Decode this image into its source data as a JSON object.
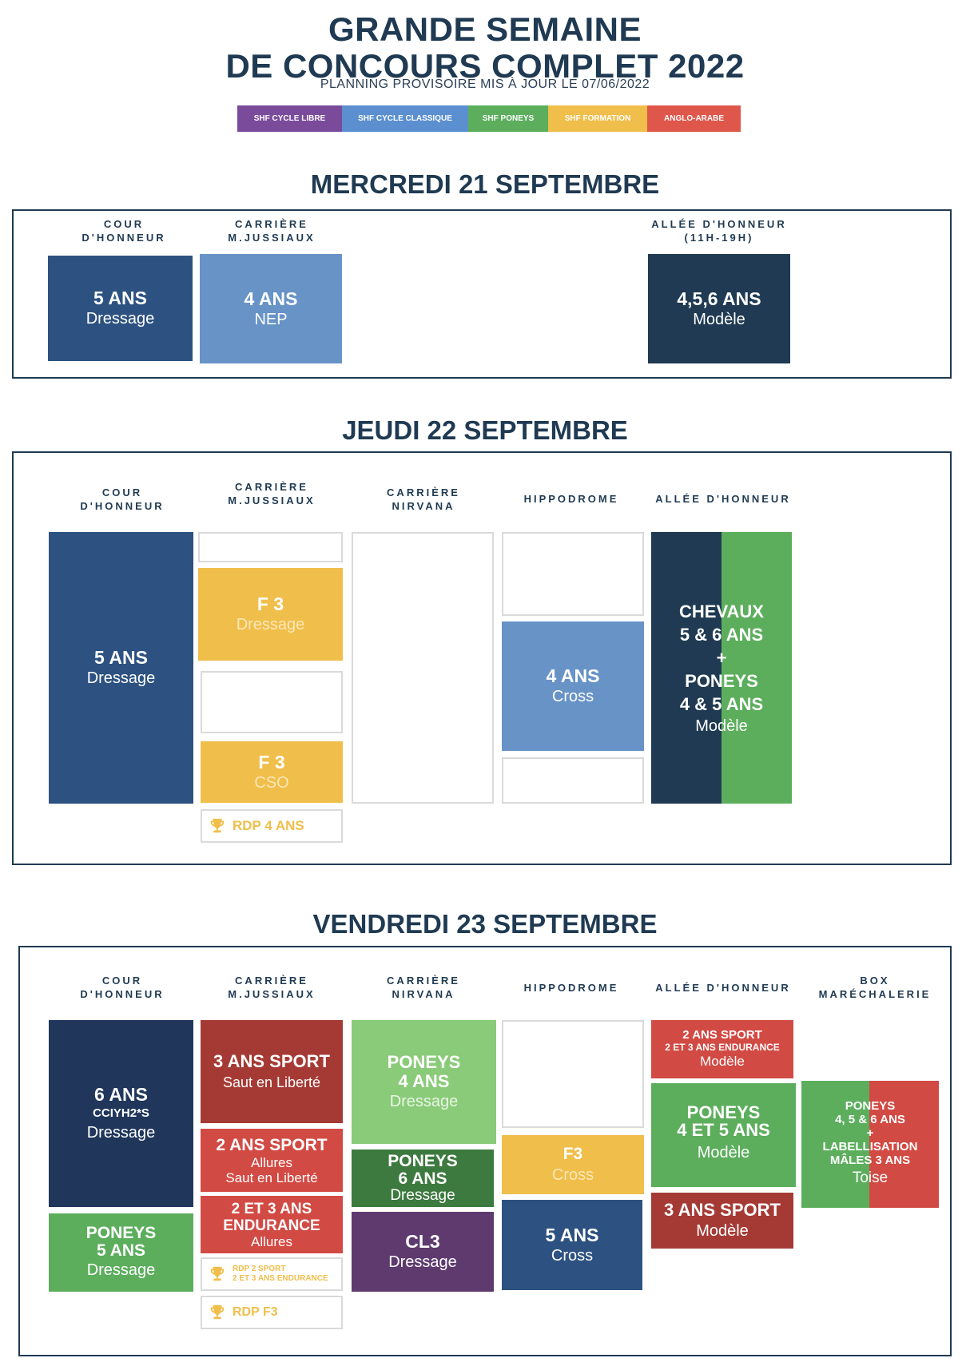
{
  "header": {
    "title_line1": "GRANDE SEMAINE",
    "title_line2": "DE CONCOURS COMPLET 2022",
    "subtitle": "PLANNING PROVISOIRE MIS À JOUR LE  07/06/2022"
  },
  "legend": [
    {
      "label": "SHF CYCLE LIBRE",
      "color": "#7b4b9b"
    },
    {
      "label": "SHF CYCLE CLASSIQUE",
      "color": "#5b8fd0"
    },
    {
      "label": "SHF PONEYS",
      "color": "#5cae5d"
    },
    {
      "label": "SHF FORMATION",
      "color": "#f0be4a"
    },
    {
      "label": "ANGLO-ARABE",
      "color": "#df564a"
    }
  ],
  "colors": {
    "navy_dark": "#1f3a52",
    "blue_dark": "#2d5281",
    "blue_light": "#6793c7",
    "green": "#5cae5d",
    "green_light": "#8acb79",
    "green_dark": "#3d7a3f",
    "yellow": "#f0be4a",
    "red": "#d24a44",
    "red_dark": "#a53a35",
    "purple": "#5e3a6f",
    "navy_block": "#20375b"
  },
  "day1": {
    "title": "MERCREDI 21 SEPTEMBRE",
    "cols": {
      "cour": "COUR\nD'HONNEUR",
      "carriere": "CARRIÈRE\nM.JUSSIAUX",
      "allee": "ALLÉE D'HONNEUR\n(11H-19H)"
    },
    "blocks": {
      "b1_title": "5 ANS",
      "b1_sub": "Dressage",
      "b2_title": "4 ANS",
      "b2_sub": "NEP",
      "b3_title": "4,5,6 ANS",
      "b3_sub": "Modèle"
    }
  },
  "day2": {
    "title": "JEUDI 22 SEPTEMBRE",
    "cols": {
      "cour": "COUR\nD'HONNEUR",
      "carriere": "CARRIÈRE\nM.JUSSIAUX",
      "nirvana": "CARRIÈRE\nNIRVANA",
      "hippodrome": "HIPPODROME",
      "allee": "ALLÉE D'HONNEUR"
    },
    "blocks": {
      "b1_title": "5 ANS",
      "b1_sub": "Dressage",
      "b2_title": "F 3",
      "b2_sub": "Dressage",
      "b3_title": "F 3",
      "b3_sub": "CSO",
      "rdp": "RDP 4 ANS",
      "b4_title": "4 ANS",
      "b4_sub": "Cross",
      "b5_l1": "CHEVAUX",
      "b5_l2": "5 & 6 ANS",
      "b5_l3": "+",
      "b5_l4": "PONEYS",
      "b5_l5": "4 & 5 ANS",
      "b5_sub": "Modèle"
    }
  },
  "day3": {
    "title": "VENDREDI 23 SEPTEMBRE",
    "cols": {
      "cour": "COUR\nD'HONNEUR",
      "carriere": "CARRIÈRE\nM.JUSSIAUX",
      "nirvana": "CARRIÈRE\nNIRVANA",
      "hippodrome": "HIPPODROME",
      "allee": "ALLÉE D'HONNEUR",
      "box": "BOX\nMARÉCHALERIE"
    },
    "blocks": {
      "c1a_title": "6 ANS",
      "c1a_mid": "CCIYH2*S",
      "c1a_sub": "Dressage",
      "c1b_l1": "PONEYS",
      "c1b_l2": "5 ANS",
      "c1b_sub": "Dressage",
      "c2a_title": "3 ANS SPORT",
      "c2a_sub": "Saut en Liberté",
      "c2b_title": "2 ANS SPORT",
      "c2b_sub1": "Allures",
      "c2b_sub2": "Saut en Liberté",
      "c2c_l1": "2 ET 3 ANS",
      "c2c_l2": "ENDURANCE",
      "c2c_sub": "Allures",
      "rdp1_l1": "RDP 2 SPORT",
      "rdp1_l2": "2 ET 3 ANS ENDURANCE",
      "rdp2": "RDP F3",
      "c3a_l1": "PONEYS",
      "c3a_l2": "4 ANS",
      "c3a_sub": "Dressage",
      "c3b_l1": "PONEYS",
      "c3b_l2": "6 ANS",
      "c3b_sub": "Dressage",
      "c3c_title": "CL3",
      "c3c_sub": "Dressage",
      "c4a_title": "F3",
      "c4a_sub": "Cross",
      "c4b_title": "5 ANS",
      "c4b_sub": "Cross",
      "c5a_l1": "2 ANS SPORT",
      "c5a_l2": "2 ET 3 ANS ENDURANCE",
      "c5a_sub": "Modèle",
      "c5b_l1": "PONEYS",
      "c5b_l2": "4 ET 5 ANS",
      "c5b_sub": "Modèle",
      "c5c_title": "3 ANS SPORT",
      "c5c_sub": "Modèle",
      "c6_l1": "PONEYS",
      "c6_l2": "4, 5 & 6 ANS",
      "c6_l3": "+",
      "c6_l4": "LABELLISATION",
      "c6_l5": "MÂLES 3 ANS",
      "c6_sub": "Toise"
    }
  }
}
